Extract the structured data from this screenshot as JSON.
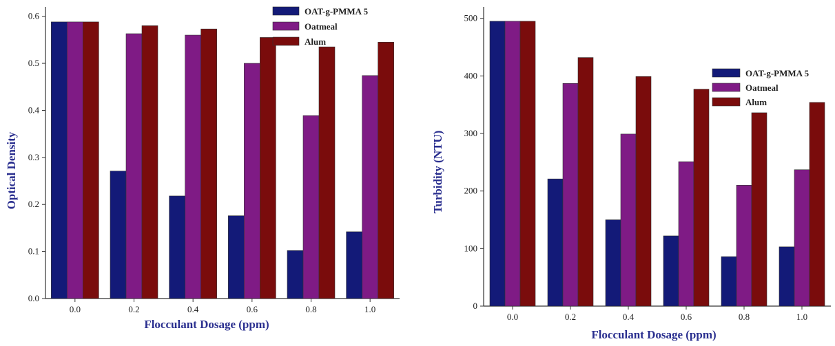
{
  "colors": {
    "OAT-g-PMMA 5": "#131a78",
    "Oatmeal": "#7f1b85",
    "Alum": "#7a0c0c",
    "axis_title": "#2a2f8f"
  },
  "chart_data": [
    {
      "type": "bar",
      "categories": [
        "0.0",
        "0.2",
        "0.4",
        "0.6",
        "0.8",
        "1.0"
      ],
      "series": [
        {
          "name": "OAT-g-PMMA 5",
          "values": [
            0.588,
            0.271,
            0.218,
            0.176,
            0.102,
            0.142
          ]
        },
        {
          "name": "Oatmeal",
          "values": [
            0.588,
            0.563,
            0.56,
            0.5,
            0.389,
            0.474
          ]
        },
        {
          "name": "Alum",
          "values": [
            0.588,
            0.58,
            0.573,
            0.555,
            0.535,
            0.545
          ]
        }
      ],
      "title": "",
      "xlabel": "Flocculant Dosage (ppm)",
      "ylabel": "Optical Density",
      "ylim": [
        0,
        0.62
      ],
      "yticks": [
        "0.0",
        "0.1",
        "0.2",
        "0.3",
        "0.4",
        "0.5",
        "0.6"
      ],
      "grid": false,
      "legend_position": "top-right"
    },
    {
      "type": "bar",
      "categories": [
        "0.0",
        "0.2",
        "0.4",
        "0.6",
        "0.8",
        "1.0"
      ],
      "series": [
        {
          "name": "OAT-g-PMMA 5",
          "values": [
            495,
            221,
            150,
            122,
            86,
            103
          ]
        },
        {
          "name": "Oatmeal",
          "values": [
            495,
            387,
            299,
            251,
            210,
            237
          ]
        },
        {
          "name": "Alum",
          "values": [
            495,
            432,
            399,
            377,
            336,
            354
          ]
        }
      ],
      "title": "",
      "xlabel": "Flocculant Dosage (ppm)",
      "ylabel": "Turbidity (NTU)",
      "ylim": [
        0,
        520
      ],
      "yticks": [
        "0",
        "100",
        "200",
        "300",
        "400",
        "500"
      ],
      "grid": false,
      "legend_position": "top-right"
    }
  ]
}
